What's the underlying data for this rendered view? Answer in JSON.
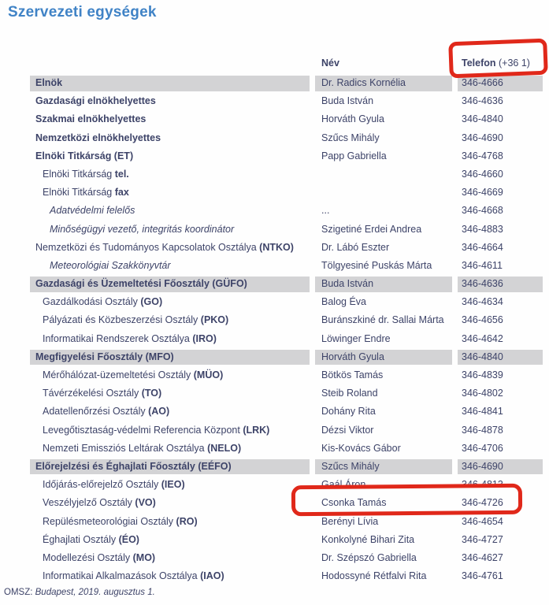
{
  "page": {
    "title": "Szervezeti egységek",
    "footer_prefix": "OMSZ: ",
    "footer_date": "Budapest, 2019. augusztus 1."
  },
  "colors": {
    "accent_blue": "#4083c6",
    "text_navy": "#3d4368",
    "row_gray": "#d3d3d5",
    "annotation_red": "#e0281a"
  },
  "annotations": {
    "header_highlight": "hand-drawn-red-circle around Telefon header",
    "row_highlight": "hand-drawn-red-circle around Csonka Tamás 346-4726"
  },
  "table": {
    "headers": {
      "unit": "",
      "name": "Név",
      "phone_bold": "Telefon",
      "phone_suffix": " (+36 1)"
    },
    "rows": [
      {
        "unit": "Elnök",
        "unit_bold": "",
        "indent": 0,
        "bold_all": true,
        "italic": false,
        "gray": true,
        "name": "Dr. Radics Kornélia",
        "phone": "346-4666"
      },
      {
        "unit": "Gazdasági elnökhelyettes",
        "unit_bold": "",
        "indent": 0,
        "bold_all": true,
        "italic": false,
        "gray": false,
        "name": "Buda István",
        "phone": "346-4636"
      },
      {
        "unit": "Szakmai elnökhelyettes",
        "unit_bold": "",
        "indent": 0,
        "bold_all": true,
        "italic": false,
        "gray": false,
        "name": "Horváth Gyula",
        "phone": "346-4840"
      },
      {
        "unit": "Nemzetközi elnökhelyettes",
        "unit_bold": "",
        "indent": 0,
        "bold_all": true,
        "italic": false,
        "gray": false,
        "name": "Szűcs Mihály",
        "phone": "346-4690"
      },
      {
        "unit": "Elnöki Titkárság (ET)",
        "unit_bold": "",
        "indent": 0,
        "bold_all": true,
        "italic": false,
        "gray": false,
        "name": "Papp Gabriella",
        "phone": "346-4768"
      },
      {
        "unit": "Elnöki Titkárság ",
        "unit_bold": "tel.",
        "indent": 1,
        "bold_all": false,
        "italic": false,
        "gray": false,
        "name": "",
        "phone": "346-4660"
      },
      {
        "unit": "Elnöki Titkárság ",
        "unit_bold": "fax",
        "indent": 1,
        "bold_all": false,
        "italic": false,
        "gray": false,
        "name": "",
        "phone": "346-4669"
      },
      {
        "unit": "Adatvédelmi felelős",
        "unit_bold": "",
        "indent": 2,
        "bold_all": false,
        "italic": true,
        "gray": false,
        "name": "...",
        "phone": "346-4668"
      },
      {
        "unit": "Minőségügyi vezető, integritás koordinátor",
        "unit_bold": "",
        "indent": 2,
        "bold_all": false,
        "italic": true,
        "gray": false,
        "name": "Szigetiné Erdei Andrea",
        "phone": "346-4883"
      },
      {
        "unit": "Nemzetközi és Tudományos Kapcsolatok Osztálya ",
        "unit_bold": "(NTKO)",
        "indent": 0,
        "bold_all": false,
        "italic": false,
        "gray": false,
        "name": "Dr. Lábó Eszter",
        "phone": "346-4664"
      },
      {
        "unit": "Meteorológiai Szakkönyvtár",
        "unit_bold": "",
        "indent": 2,
        "bold_all": false,
        "italic": true,
        "gray": false,
        "name": "Tölgyesiné Puskás Márta",
        "phone": "346-4611"
      },
      {
        "unit": "Gazdasági és Üzemeltetési Főosztály (GÜFO)",
        "unit_bold": "",
        "indent": 0,
        "bold_all": true,
        "italic": false,
        "gray": true,
        "name": "Buda István",
        "phone": "346-4636"
      },
      {
        "unit": "Gazdálkodási Osztály ",
        "unit_bold": "(GO)",
        "indent": 1,
        "bold_all": false,
        "italic": false,
        "gray": false,
        "name": "Balog Éva",
        "phone": "346-4634"
      },
      {
        "unit": "Pályázati és Közbeszerzési Osztály ",
        "unit_bold": "(PKO)",
        "indent": 1,
        "bold_all": false,
        "italic": false,
        "gray": false,
        "name": "Buránszkiné dr. Sallai Márta",
        "phone": "346-4656"
      },
      {
        "unit": "Informatikai Rendszerek Osztálya ",
        "unit_bold": "(IRO)",
        "indent": 1,
        "bold_all": false,
        "italic": false,
        "gray": false,
        "name": "Löwinger Endre",
        "phone": "346-4642"
      },
      {
        "unit": "Megfigyelési Főosztály (MFO)",
        "unit_bold": "",
        "indent": 0,
        "bold_all": true,
        "italic": false,
        "gray": true,
        "name": "Horváth Gyula",
        "phone": "346-4840"
      },
      {
        "unit": "Mérőhálózat-üzemeltetési Osztály ",
        "unit_bold": "(MÜO)",
        "indent": 1,
        "bold_all": false,
        "italic": false,
        "gray": false,
        "name": "Bötkös Tamás",
        "phone": "346-4839"
      },
      {
        "unit": "Távérzékelési Osztály ",
        "unit_bold": "(TO)",
        "indent": 1,
        "bold_all": false,
        "italic": false,
        "gray": false,
        "name": "Steib Roland",
        "phone": "346-4802"
      },
      {
        "unit": "Adatellenőrzési Osztály ",
        "unit_bold": "(AO)",
        "indent": 1,
        "bold_all": false,
        "italic": false,
        "gray": false,
        "name": "Dohány Rita",
        "phone": "346-4841"
      },
      {
        "unit": "Levegőtisztaság-védelmi Referencia Központ ",
        "unit_bold": "(LRK)",
        "indent": 1,
        "bold_all": false,
        "italic": false,
        "gray": false,
        "name": "Dézsi Viktor",
        "phone": "346-4878"
      },
      {
        "unit": "Nemzeti Emissziós Leltárak Osztálya ",
        "unit_bold": "(NELO)",
        "indent": 1,
        "bold_all": false,
        "italic": false,
        "gray": false,
        "name": "Kis-Kovács Gábor",
        "phone": "346-4706"
      },
      {
        "unit": "Előrejelzési és Éghajlati Főosztály (EÉFO)",
        "unit_bold": "",
        "indent": 0,
        "bold_all": true,
        "italic": false,
        "gray": true,
        "name": "Szűcs Mihály",
        "phone": "346-4690"
      },
      {
        "unit": "Időjárás-előrejelző Osztály ",
        "unit_bold": "(IEO)",
        "indent": 1,
        "bold_all": false,
        "italic": false,
        "gray": false,
        "name": "Gaál Áron",
        "phone": "346-4813"
      },
      {
        "unit": "Veszélyjelző Osztály ",
        "unit_bold": "(VO)",
        "indent": 1,
        "bold_all": false,
        "italic": false,
        "gray": false,
        "name": "Csonka Tamás",
        "phone": "346-4726",
        "annotated": true
      },
      {
        "unit": "Repülésmeteorológiai Osztály ",
        "unit_bold": "(RO)",
        "indent": 1,
        "bold_all": false,
        "italic": false,
        "gray": false,
        "name": "Berényi Lívia",
        "phone": "346-4654"
      },
      {
        "unit": "Éghajlati Osztály ",
        "unit_bold": "(ÉO)",
        "indent": 1,
        "bold_all": false,
        "italic": false,
        "gray": false,
        "name": "Konkolyné Bihari Zita",
        "phone": "346-4727"
      },
      {
        "unit": "Modellezési Osztály ",
        "unit_bold": "(MO)",
        "indent": 1,
        "bold_all": false,
        "italic": false,
        "gray": false,
        "name": "Dr. Szépszó Gabriella",
        "phone": "346-4627"
      },
      {
        "unit": "Informatikai Alkalmazások Osztálya ",
        "unit_bold": "(IAO)",
        "indent": 1,
        "bold_all": false,
        "italic": false,
        "gray": false,
        "name": "Hodossyné Rétfalvi Rita",
        "phone": "346-4761"
      }
    ]
  }
}
